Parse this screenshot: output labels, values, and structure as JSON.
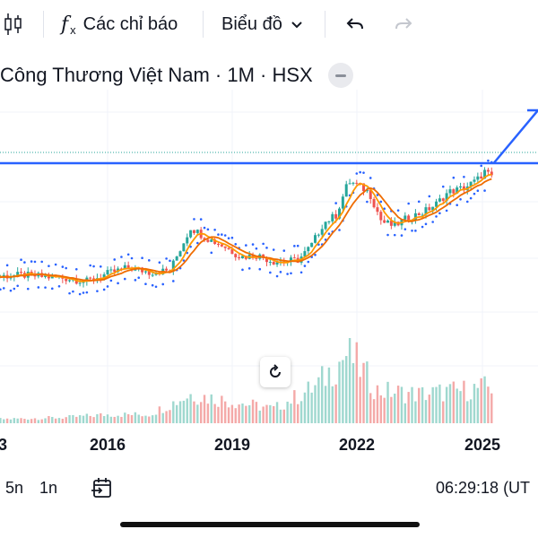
{
  "toolbar": {
    "candles_icon": "candlestick-icon",
    "indicators_icon": "fx-icon",
    "indicators_label": "Các chỉ báo",
    "chart_type_label": "Biểu đồ",
    "undo_icon": "undo-icon",
    "redo_icon": "redo-icon"
  },
  "legend": {
    "title": "Công Thương Việt Nam · 1M · HSX"
  },
  "x_axis": {
    "labels": [
      "2016",
      "2019",
      "2022",
      "2025"
    ],
    "partial_label": "3"
  },
  "bottom_bar": {
    "range_5y": "5n",
    "range_1y": "1n",
    "time": "06:29:18 (UT"
  },
  "colors": {
    "up": "#26a69a",
    "down": "#ef5350",
    "ma_fast": "#ff9800",
    "ma_slow": "#ef6c00",
    "sar": "#2962ff",
    "trendline": "#2962ff",
    "vol_up": "#9fd8cf",
    "vol_down": "#f4a9a8"
  },
  "chart_data": {
    "type": "candlestick",
    "interval": "1M",
    "x_ticks": [
      "2016",
      "2019",
      "2022",
      "2025"
    ],
    "price_path": [
      [
        2013.0,
        0.3
      ],
      [
        2014.0,
        0.31
      ],
      [
        2015.0,
        0.29
      ],
      [
        2015.5,
        0.27
      ],
      [
        2016.0,
        0.32
      ],
      [
        2016.5,
        0.36
      ],
      [
        2017.0,
        0.33
      ],
      [
        2017.5,
        0.34
      ],
      [
        2018.0,
        0.62
      ],
      [
        2018.4,
        0.55
      ],
      [
        2018.8,
        0.5
      ],
      [
        2019.2,
        0.43
      ],
      [
        2019.6,
        0.44
      ],
      [
        2020.0,
        0.4
      ],
      [
        2020.3,
        0.4
      ],
      [
        2020.6,
        0.41
      ],
      [
        2020.9,
        0.5
      ],
      [
        2021.2,
        0.65
      ],
      [
        2021.5,
        0.7
      ],
      [
        2021.8,
        0.92
      ],
      [
        2022.0,
        0.9
      ],
      [
        2022.3,
        0.85
      ],
      [
        2022.6,
        0.66
      ],
      [
        2022.9,
        0.63
      ],
      [
        2023.2,
        0.68
      ],
      [
        2023.6,
        0.72
      ],
      [
        2023.9,
        0.77
      ],
      [
        2024.2,
        0.85
      ],
      [
        2024.6,
        0.88
      ],
      [
        2024.9,
        0.93
      ],
      [
        2025.1,
        0.99
      ],
      [
        2025.25,
        0.94
      ]
    ],
    "volume_path": [
      [
        2013.0,
        0.05
      ],
      [
        2015.0,
        0.08
      ],
      [
        2016.0,
        0.12
      ],
      [
        2017.0,
        0.12
      ],
      [
        2018.0,
        0.4
      ],
      [
        2019.0,
        0.3
      ],
      [
        2020.0,
        0.2
      ],
      [
        2021.0,
        0.5
      ],
      [
        2021.8,
        0.98
      ],
      [
        2022.5,
        0.45
      ],
      [
        2023.5,
        0.4
      ],
      [
        2024.5,
        0.45
      ],
      [
        2025.2,
        0.5
      ]
    ],
    "horizontal_level": 0.93,
    "trendline": [
      [
        2025.3,
        0.93
      ],
      [
        2026.0,
        1.3
      ]
    ]
  }
}
